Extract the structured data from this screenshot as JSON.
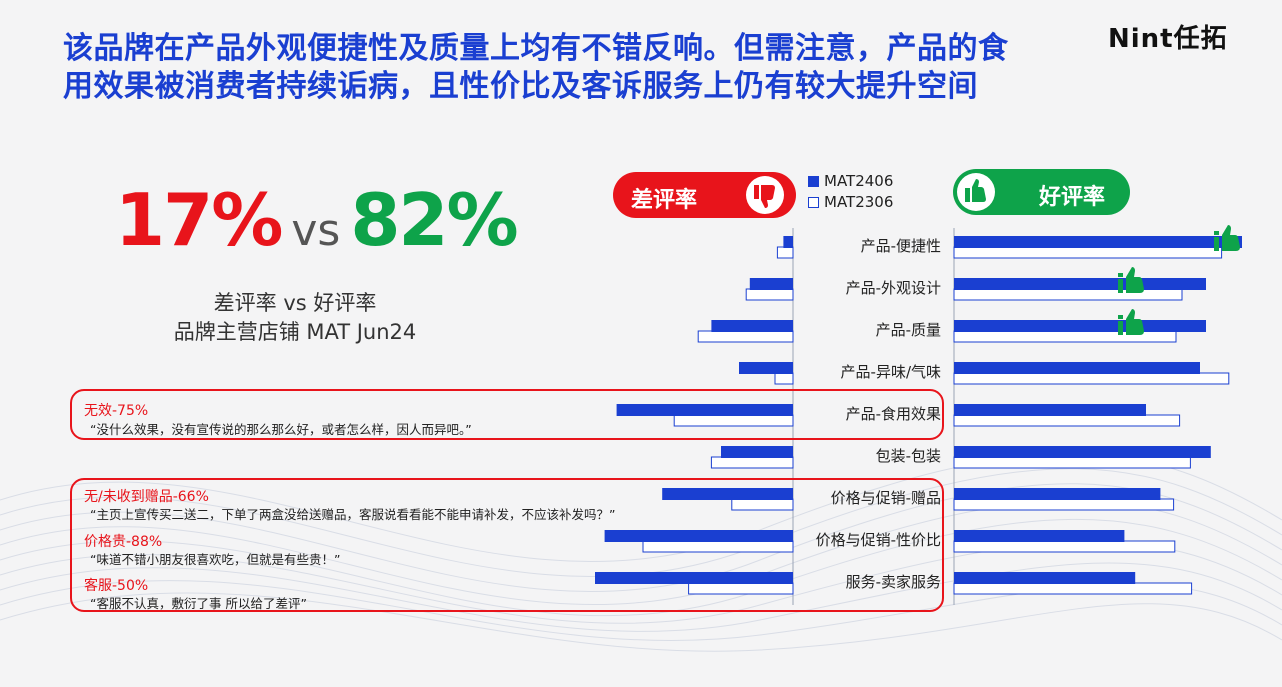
{
  "headline": {
    "line1": "该品牌在产品外观便捷性及质量上均有不错反响。但需注意，产品的食",
    "line2": "用效果被消费者持续诟病，且性价比及客诉服务上仍有较大提升空间"
  },
  "logo": "Nint任拓",
  "ratio": {
    "negative": "17%",
    "vs": "vs",
    "positive": "82%"
  },
  "caption": {
    "line1": "差评率 vs 好评率",
    "line2": "品牌主营店铺 MAT Jun24"
  },
  "negative_pill": "差评率",
  "positive_pill": "好评率",
  "colors": {
    "blue": "#1a3fd1",
    "red": "#e8141b",
    "green": "#0ea34a"
  },
  "callouts": [
    {
      "title": "无效-75%",
      "quote": "“没什么效果，没有宣传说的那么那么好，或者怎么样，因人而异吧。”"
    },
    {
      "title": "无/未收到赠品-66%",
      "quote": "“主页上宣传买二送二，下单了两盒没给送赠品，客服说看看能不能申请补发，不应该补发吗？”"
    },
    {
      "title": "价格贵-88%",
      "quote": "“味道不错小朋友很喜欢吃，但就是有些贵！”"
    },
    {
      "title": "客服-50%",
      "quote": "“客服不认真，敷衍了事 所以给了差评”"
    }
  ],
  "chart_data": {
    "type": "bar",
    "orientation": "diverging-horizontal",
    "series": [
      {
        "name": "MAT2406"
      },
      {
        "name": "MAT2306"
      }
    ],
    "categories": [
      "产品-便捷性",
      "产品-外观设计",
      "产品-质量",
      "产品-异味/气味",
      "产品-食用效果",
      "包装-包装",
      "价格与促销-赠品",
      "价格与促销-性价比",
      "服务-卖家服务"
    ],
    "negative_values": {
      "MAT2406": [
        0.8,
        3.6,
        6.8,
        4.5,
        14.7,
        6.0,
        10.9,
        15.7,
        16.5
      ],
      "MAT2306": [
        1.3,
        3.9,
        7.9,
        1.5,
        9.9,
        6.8,
        5.1,
        12.5,
        8.7
      ]
    },
    "positive_values": {
      "MAT2406": [
        24.0,
        21.0,
        21.0,
        20.5,
        16.0,
        21.4,
        17.2,
        14.2,
        15.1
      ],
      "MAT2306": [
        22.3,
        19.0,
        18.5,
        22.9,
        18.8,
        19.7,
        18.3,
        18.4,
        19.8
      ]
    },
    "thumbs_up_categories": [
      "产品-便捷性",
      "产品-外观设计",
      "产品-质量"
    ]
  }
}
